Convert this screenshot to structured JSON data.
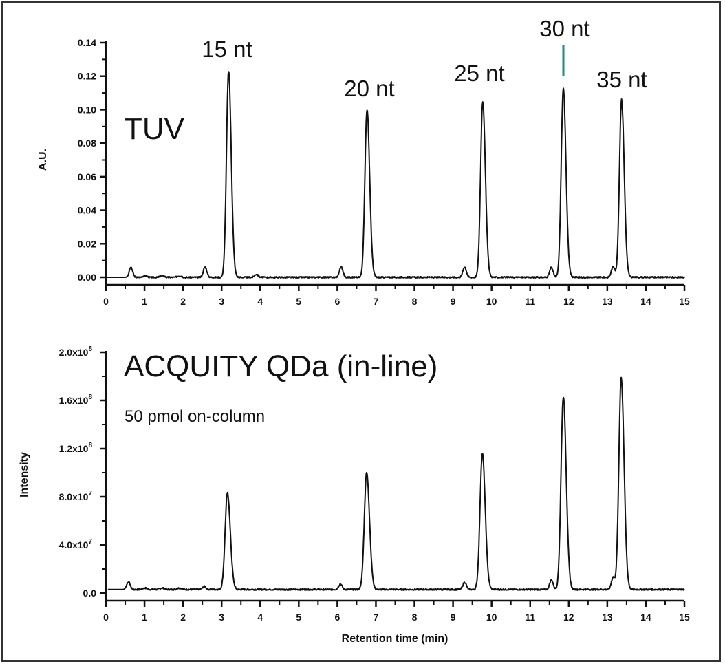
{
  "chart_data": [
    {
      "type": "line",
      "panel": "top",
      "title": "TUV",
      "xlabel": "",
      "ylabel": "A.U.",
      "xlim": [
        0,
        15
      ],
      "ylim": [
        0,
        0.14
      ],
      "x_ticks": [
        "0",
        "1",
        "2",
        "3",
        "4",
        "5",
        "6",
        "7",
        "8",
        "9",
        "10",
        "11",
        "12",
        "13",
        "14",
        "15"
      ],
      "y_ticks": [
        "0.00",
        "0.02",
        "0.04",
        "0.06",
        "0.08",
        "0.10",
        "0.12",
        "0.14"
      ],
      "grid": false,
      "annotations": [
        {
          "text": "15 nt",
          "x": 3.18
        },
        {
          "text": "20 nt",
          "x": 6.77
        },
        {
          "text": "25 nt",
          "x": 9.77
        },
        {
          "text": "30 nt",
          "x": 11.86,
          "marker_color": "#1a8a8a"
        },
        {
          "text": "35 nt",
          "x": 13.37
        }
      ],
      "peaks": [
        {
          "x": 0.65,
          "y": 0.0055
        },
        {
          "x": 2.57,
          "y": 0.0062
        },
        {
          "x": 3.18,
          "y": 0.123,
          "label": "15 nt"
        },
        {
          "x": 3.9,
          "y": 0.0018
        },
        {
          "x": 6.1,
          "y": 0.0062
        },
        {
          "x": 6.77,
          "y": 0.1,
          "label": "20 nt"
        },
        {
          "x": 9.3,
          "y": 0.0062
        },
        {
          "x": 9.77,
          "y": 0.105,
          "label": "25 nt"
        },
        {
          "x": 11.55,
          "y": 0.0058
        },
        {
          "x": 11.86,
          "y": 0.1125,
          "label": "30 nt"
        },
        {
          "x": 13.15,
          "y": 0.0065
        },
        {
          "x": 13.37,
          "y": 0.106,
          "label": "35 nt"
        }
      ]
    },
    {
      "type": "line",
      "panel": "bottom",
      "title": "ACQUITY QDa (in-line)",
      "subtitle": "50 pmol on-column",
      "xlabel": "Retention time (min)",
      "ylabel": "Intensity",
      "xlim": [
        0,
        15
      ],
      "ylim": [
        0,
        200000000.0
      ],
      "x_ticks": [
        "0",
        "1",
        "2",
        "3",
        "4",
        "5",
        "6",
        "7",
        "8",
        "9",
        "10",
        "11",
        "12",
        "13",
        "14",
        "15"
      ],
      "y_ticks": [
        "0.0",
        "4.0x10^7",
        "8.0x10^7",
        "1.2x10^8",
        "1.6x10^8",
        "2.0x10^8"
      ],
      "grid": false,
      "baseline": 3000000.0,
      "peaks": [
        {
          "x": 0.58,
          "y": 9000000.0
        },
        {
          "x": 2.55,
          "y": 5500000.0
        },
        {
          "x": 3.15,
          "y": 83000000.0
        },
        {
          "x": 6.08,
          "y": 7500000.0
        },
        {
          "x": 6.76,
          "y": 100000000.0
        },
        {
          "x": 9.3,
          "y": 9000000.0
        },
        {
          "x": 9.76,
          "y": 116000000.0
        },
        {
          "x": 11.55,
          "y": 11000000.0
        },
        {
          "x": 11.86,
          "y": 163000000.0
        },
        {
          "x": 13.15,
          "y": 13000000.0
        },
        {
          "x": 13.36,
          "y": 179000000.0
        }
      ]
    }
  ],
  "labels": {
    "top_title": "TUV",
    "top_ylabel": "A.U.",
    "bottom_title": "ACQUITY QDa (in-line)",
    "bottom_subtitle": "50 pmol on-column",
    "bottom_ylabel": "Intensity",
    "xlabel": "Retention time (min)",
    "peak_15": "15 nt",
    "peak_20": "20 nt",
    "peak_25": "25 nt",
    "peak_30": "30 nt",
    "peak_35": "35 nt"
  },
  "colors": {
    "trace": "#111111",
    "marker_30nt": "#1a8a8a"
  }
}
